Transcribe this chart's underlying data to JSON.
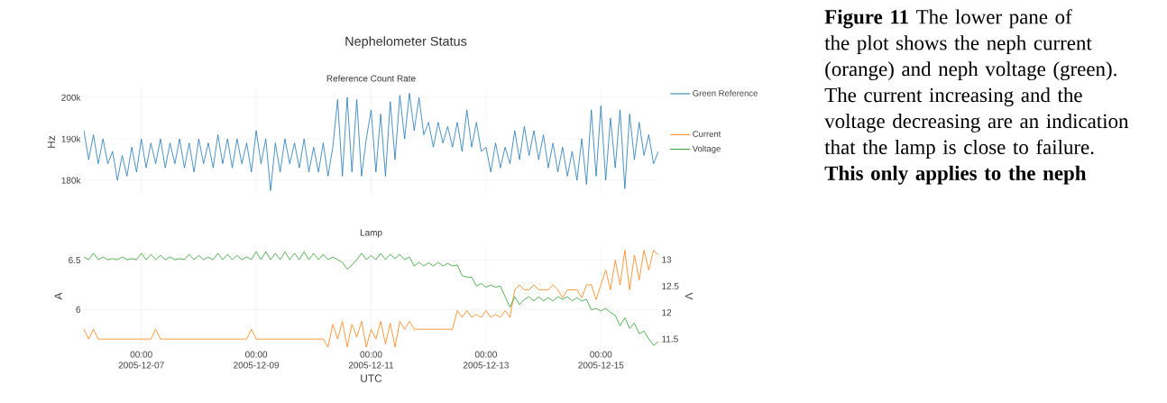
{
  "chart_data": [
    {
      "type": "line",
      "title": "Nephelometer Status",
      "subtitle": "Reference Count Rate",
      "ylabel": "Hz",
      "x": [
        "2005-12-06T00:00",
        "2005-12-06T02:00",
        "2005-12-06T04:00",
        "2005-12-06T06:00",
        "2005-12-06T08:00",
        "2005-12-06T10:00",
        "2005-12-06T12:00",
        "2005-12-06T14:00",
        "2005-12-06T16:00",
        "2005-12-06T18:00",
        "2005-12-06T20:00",
        "2005-12-06T22:00",
        "2005-12-07T00:00",
        "2005-12-07T02:00",
        "2005-12-07T04:00",
        "2005-12-07T06:00",
        "2005-12-07T08:00",
        "2005-12-07T10:00",
        "2005-12-07T12:00",
        "2005-12-07T14:00",
        "2005-12-07T16:00",
        "2005-12-07T18:00",
        "2005-12-07T20:00",
        "2005-12-07T22:00",
        "2005-12-08T00:00",
        "2005-12-08T02:00",
        "2005-12-08T04:00",
        "2005-12-08T06:00",
        "2005-12-08T08:00",
        "2005-12-08T10:00",
        "2005-12-08T12:00",
        "2005-12-08T14:00",
        "2005-12-08T16:00",
        "2005-12-08T18:00",
        "2005-12-08T20:00",
        "2005-12-08T22:00",
        "2005-12-09T00:00",
        "2005-12-09T02:00",
        "2005-12-09T04:00",
        "2005-12-09T06:00",
        "2005-12-09T08:00",
        "2005-12-09T10:00",
        "2005-12-09T12:00",
        "2005-12-09T14:00",
        "2005-12-09T16:00",
        "2005-12-09T18:00",
        "2005-12-09T20:00",
        "2005-12-09T22:00",
        "2005-12-10T00:00",
        "2005-12-10T02:00",
        "2005-12-10T04:00",
        "2005-12-10T06:00",
        "2005-12-10T08:00",
        "2005-12-10T10:00",
        "2005-12-10T12:00",
        "2005-12-10T14:00",
        "2005-12-10T16:00",
        "2005-12-10T18:00",
        "2005-12-10T20:00",
        "2005-12-10T22:00",
        "2005-12-11T00:00",
        "2005-12-11T02:00",
        "2005-12-11T04:00",
        "2005-12-11T06:00",
        "2005-12-11T08:00",
        "2005-12-11T10:00",
        "2005-12-11T12:00",
        "2005-12-11T14:00",
        "2005-12-11T16:00",
        "2005-12-11T18:00",
        "2005-12-11T20:00",
        "2005-12-11T22:00",
        "2005-12-12T00:00",
        "2005-12-12T02:00",
        "2005-12-12T04:00",
        "2005-12-12T06:00",
        "2005-12-12T08:00",
        "2005-12-12T10:00",
        "2005-12-12T12:00",
        "2005-12-12T14:00",
        "2005-12-12T16:00",
        "2005-12-12T18:00",
        "2005-12-12T20:00",
        "2005-12-12T22:00",
        "2005-12-13T00:00",
        "2005-12-13T02:00",
        "2005-12-13T04:00",
        "2005-12-13T06:00",
        "2005-12-13T08:00",
        "2005-12-13T10:00",
        "2005-12-13T12:00",
        "2005-12-13T14:00",
        "2005-12-13T16:00",
        "2005-12-13T18:00",
        "2005-12-13T20:00",
        "2005-12-13T22:00",
        "2005-12-14T00:00",
        "2005-12-14T02:00",
        "2005-12-14T04:00",
        "2005-12-14T06:00",
        "2005-12-14T08:00",
        "2005-12-14T10:00",
        "2005-12-14T12:00",
        "2005-12-14T14:00",
        "2005-12-14T16:00",
        "2005-12-14T18:00",
        "2005-12-14T20:00",
        "2005-12-14T22:00",
        "2005-12-15T00:00",
        "2005-12-15T02:00",
        "2005-12-15T04:00",
        "2005-12-15T06:00",
        "2005-12-15T08:00",
        "2005-12-15T10:00",
        "2005-12-15T12:00",
        "2005-12-15T14:00",
        "2005-12-15T16:00",
        "2005-12-15T18:00",
        "2005-12-15T20:00",
        "2005-12-15T22:00",
        "2005-12-16T00:00"
      ],
      "series": [
        {
          "name": "Green Reference",
          "color": "#1f77b4",
          "values": [
            192000,
            185000,
            191000,
            184000,
            190000,
            184000,
            187000,
            180000,
            186000,
            181000,
            188000,
            182000,
            190000,
            183000,
            189000,
            184000,
            190000,
            183000,
            189000,
            184000,
            190000,
            183000,
            189000,
            182000,
            190000,
            184000,
            189000,
            183000,
            191000,
            184000,
            190000,
            183000,
            190000,
            184000,
            189000,
            182000,
            192000,
            184000,
            190000,
            177500,
            189000,
            182000,
            190000,
            184000,
            189000,
            183000,
            190000,
            182000,
            188000,
            182000,
            189000,
            181000,
            188000,
            199500,
            181000,
            200000,
            182000,
            199500,
            181000,
            190000,
            197000,
            182000,
            196000,
            181000,
            199000,
            185000,
            200500,
            190000,
            201000,
            192000,
            200000,
            191000,
            194000,
            188000,
            194000,
            189000,
            193000,
            188000,
            194000,
            187000,
            197000,
            188000,
            194000,
            187000,
            188000,
            182000,
            189000,
            183000,
            188000,
            184000,
            192000,
            185000,
            193000,
            186000,
            192000,
            185000,
            191000,
            183000,
            189000,
            182000,
            188000,
            181000,
            187000,
            180000,
            190000,
            179000,
            197000,
            181000,
            198000,
            180000,
            195000,
            183000,
            197000,
            178000,
            196000,
            185000,
            194000,
            186000,
            191000,
            184000,
            187000
          ]
        }
      ],
      "xlim": [
        "2005-12-06",
        "2005-12-16"
      ],
      "xticks": [
        {
          "value": "2005-12-07",
          "label": null
        },
        {
          "value": "2005-12-09",
          "label": null
        },
        {
          "value": "2005-12-11",
          "label": null
        },
        {
          "value": "2005-12-13",
          "label": null
        },
        {
          "value": "2005-12-15",
          "label": null
        }
      ],
      "ylim": [
        176300,
        202200
      ],
      "yticks": [
        {
          "value": 180000,
          "label": "180k"
        },
        {
          "value": 190000,
          "label": "190k"
        },
        {
          "value": 200000,
          "label": "200k"
        }
      ],
      "grid": true,
      "legend": "right",
      "tick_labels": "y"
    },
    {
      "type": "line",
      "title": "Lamp",
      "xlabel": "UTC",
      "ylabel": "A",
      "y2label": "V",
      "x": [
        "2005-12-06T00:00",
        "2005-12-06T02:00",
        "2005-12-06T04:00",
        "2005-12-06T06:00",
        "2005-12-06T08:00",
        "2005-12-06T10:00",
        "2005-12-06T12:00",
        "2005-12-06T14:00",
        "2005-12-06T16:00",
        "2005-12-06T18:00",
        "2005-12-06T20:00",
        "2005-12-06T22:00",
        "2005-12-07T00:00",
        "2005-12-07T02:00",
        "2005-12-07T04:00",
        "2005-12-07T06:00",
        "2005-12-07T08:00",
        "2005-12-07T10:00",
        "2005-12-07T12:00",
        "2005-12-07T14:00",
        "2005-12-07T16:00",
        "2005-12-07T18:00",
        "2005-12-07T20:00",
        "2005-12-07T22:00",
        "2005-12-08T00:00",
        "2005-12-08T02:00",
        "2005-12-08T04:00",
        "2005-12-08T06:00",
        "2005-12-08T08:00",
        "2005-12-08T10:00",
        "2005-12-08T12:00",
        "2005-12-08T14:00",
        "2005-12-08T16:00",
        "2005-12-08T18:00",
        "2005-12-08T20:00",
        "2005-12-08T22:00",
        "2005-12-09T00:00",
        "2005-12-09T02:00",
        "2005-12-09T04:00",
        "2005-12-09T06:00",
        "2005-12-09T08:00",
        "2005-12-09T10:00",
        "2005-12-09T12:00",
        "2005-12-09T14:00",
        "2005-12-09T16:00",
        "2005-12-09T18:00",
        "2005-12-09T20:00",
        "2005-12-09T22:00",
        "2005-12-10T00:00",
        "2005-12-10T02:00",
        "2005-12-10T04:00",
        "2005-12-10T06:00",
        "2005-12-10T08:00",
        "2005-12-10T10:00",
        "2005-12-10T12:00",
        "2005-12-10T14:00",
        "2005-12-10T16:00",
        "2005-12-10T18:00",
        "2005-12-10T20:00",
        "2005-12-10T22:00",
        "2005-12-11T00:00",
        "2005-12-11T02:00",
        "2005-12-11T04:00",
        "2005-12-11T06:00",
        "2005-12-11T08:00",
        "2005-12-11T10:00",
        "2005-12-11T12:00",
        "2005-12-11T14:00",
        "2005-12-11T16:00",
        "2005-12-11T18:00",
        "2005-12-11T20:00",
        "2005-12-11T22:00",
        "2005-12-12T00:00",
        "2005-12-12T02:00",
        "2005-12-12T04:00",
        "2005-12-12T06:00",
        "2005-12-12T08:00",
        "2005-12-12T10:00",
        "2005-12-12T12:00",
        "2005-12-12T14:00",
        "2005-12-12T16:00",
        "2005-12-12T18:00",
        "2005-12-12T20:00",
        "2005-12-12T22:00",
        "2005-12-13T00:00",
        "2005-12-13T02:00",
        "2005-12-13T04:00",
        "2005-12-13T06:00",
        "2005-12-13T08:00",
        "2005-12-13T10:00",
        "2005-12-13T12:00",
        "2005-12-13T14:00",
        "2005-12-13T16:00",
        "2005-12-13T18:00",
        "2005-12-13T20:00",
        "2005-12-13T22:00",
        "2005-12-14T00:00",
        "2005-12-14T02:00",
        "2005-12-14T04:00",
        "2005-12-14T06:00",
        "2005-12-14T08:00",
        "2005-12-14T10:00",
        "2005-12-14T12:00",
        "2005-12-14T14:00",
        "2005-12-14T16:00",
        "2005-12-14T18:00",
        "2005-12-14T20:00",
        "2005-12-14T22:00",
        "2005-12-15T00:00",
        "2005-12-15T02:00",
        "2005-12-15T04:00",
        "2005-12-15T06:00",
        "2005-12-15T08:00",
        "2005-12-15T10:00",
        "2005-12-15T12:00",
        "2005-12-15T14:00",
        "2005-12-15T16:00",
        "2005-12-15T18:00",
        "2005-12-15T20:00",
        "2005-12-15T22:00",
        "2005-12-16T00:00"
      ],
      "series": [
        {
          "name": "Current",
          "color": "#ff7f0e",
          "values": [
            5.8,
            5.7,
            5.8,
            5.7,
            5.7,
            5.7,
            5.7,
            5.7,
            5.7,
            5.7,
            5.7,
            5.7,
            5.7,
            5.7,
            5.7,
            5.8,
            5.7,
            5.7,
            5.7,
            5.7,
            5.7,
            5.7,
            5.7,
            5.7,
            5.7,
            5.7,
            5.7,
            5.7,
            5.7,
            5.7,
            5.7,
            5.7,
            5.7,
            5.7,
            5.7,
            5.8,
            5.7,
            5.7,
            5.7,
            5.7,
            5.7,
            5.7,
            5.7,
            5.7,
            5.7,
            5.7,
            5.7,
            5.7,
            5.7,
            5.7,
            5.7,
            5.62,
            5.85,
            5.7,
            5.88,
            5.62,
            5.85,
            5.72,
            5.88,
            5.62,
            5.8,
            5.7,
            5.88,
            5.65,
            5.86,
            5.62,
            5.88,
            5.8,
            5.88,
            5.8,
            5.8,
            5.8,
            5.8,
            5.8,
            5.8,
            5.8,
            5.8,
            5.8,
            5.99,
            5.92,
            5.99,
            5.92,
            5.95,
            5.92,
            5.99,
            5.92,
            5.95,
            5.92,
            5.99,
            5.92,
            6.2,
            6.25,
            6.2,
            6.2,
            6.25,
            6.2,
            6.2,
            6.2,
            6.25,
            6.2,
            6.12,
            6.2,
            6.2,
            6.2,
            6.12,
            6.25,
            6.25,
            6.1,
            6.25,
            6.4,
            6.2,
            6.5,
            6.25,
            6.6,
            6.2,
            6.55,
            6.3,
            6.6,
            6.4,
            6.6,
            6.55
          ]
        },
        {
          "name": "Voltage",
          "color": "#2ca02c",
          "axis": "y2",
          "values": [
            13.05,
            13.0,
            13.12,
            13.0,
            13.05,
            13.0,
            13.02,
            13.0,
            13.05,
            13.0,
            13.02,
            13.0,
            13.12,
            13.0,
            13.1,
            13.0,
            13.08,
            13.0,
            13.05,
            13.0,
            13.02,
            13.0,
            13.1,
            13.0,
            13.08,
            13.0,
            13.05,
            13.0,
            13.12,
            13.0,
            13.1,
            13.0,
            13.08,
            13.0,
            13.05,
            13.0,
            13.15,
            13.0,
            13.15,
            13.0,
            13.12,
            13.0,
            13.15,
            13.0,
            13.12,
            13.0,
            13.15,
            13.0,
            13.12,
            13.0,
            13.1,
            13.0,
            13.05,
            13.0,
            12.95,
            12.82,
            12.9,
            13.0,
            13.12,
            13.0,
            13.08,
            13.0,
            13.12,
            13.0,
            13.1,
            13.02,
            13.1,
            13.0,
            13.05,
            12.88,
            12.95,
            12.88,
            12.94,
            12.88,
            12.95,
            12.88,
            12.93,
            12.88,
            12.9,
            12.7,
            12.67,
            12.67,
            12.5,
            12.55,
            12.48,
            12.52,
            12.48,
            12.5,
            12.3,
            12.1,
            12.3,
            12.15,
            12.25,
            12.3,
            12.22,
            12.3,
            12.22,
            12.28,
            12.22,
            12.3,
            12.25,
            12.3,
            12.22,
            12.28,
            12.22,
            12.25,
            12.05,
            12.08,
            12.03,
            12.08,
            12.0,
            11.95,
            11.75,
            11.9,
            11.7,
            11.8,
            11.6,
            11.65,
            11.5,
            11.38,
            11.45
          ]
        }
      ],
      "xlim": [
        "2005-12-06",
        "2005-12-16"
      ],
      "xticks": [
        {
          "value": "2005-12-07",
          "label": "00:00 2005-12-07"
        },
        {
          "value": "2005-12-09",
          "label": "00:00 2005-12-09"
        },
        {
          "value": "2005-12-11",
          "label": "00:00 2005-12-11"
        },
        {
          "value": "2005-12-13",
          "label": "00:00 2005-12-13"
        },
        {
          "value": "2005-12-15",
          "label": "00:00 2005-12-15"
        }
      ],
      "ylim": [
        5.61,
        6.66
      ],
      "yticks": [
        6,
        6.5
      ],
      "y2lim": [
        11.33,
        13.29
      ],
      "y2ticks": [
        11.5,
        12,
        12.5,
        13
      ],
      "grid": true,
      "legend": "top right"
    },
    {
      "type": "other",
      "annotations": [
        "**Figure 11** The lower pane of the plot shows the neph current (orange) and neph voltage (green).  The current increasing and the voltage decreasing are an indication that the lamp is close to failure.",
        "**This only applies to the neph**"
      ]
    }
  ]
}
